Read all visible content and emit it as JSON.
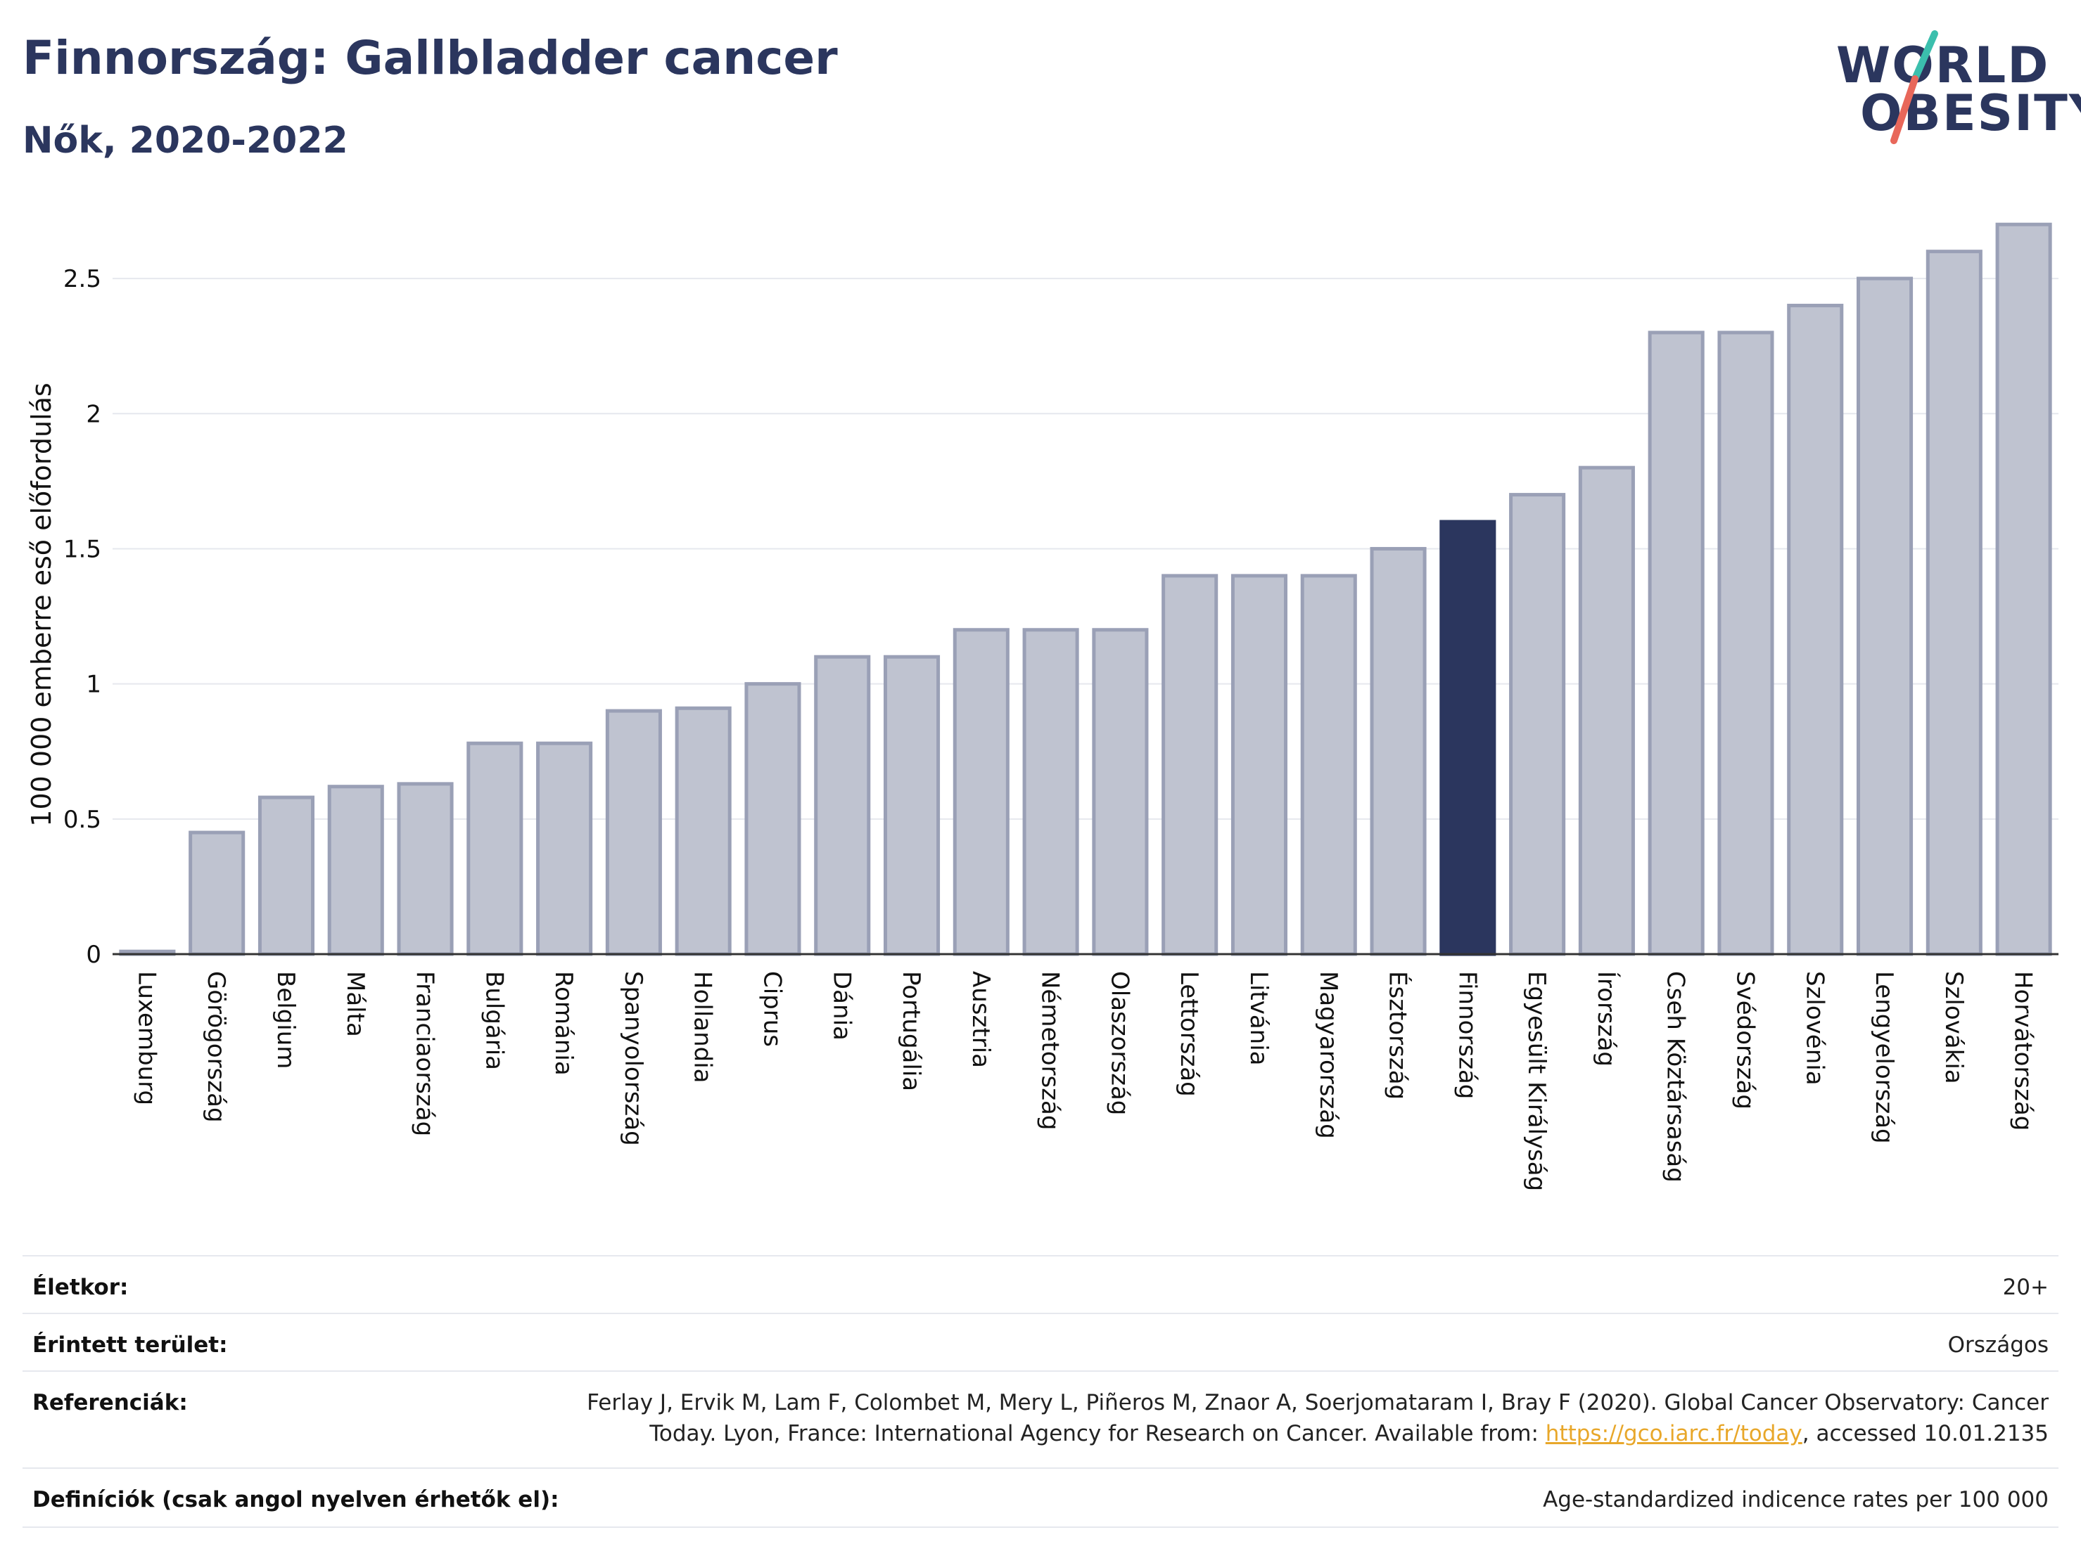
{
  "header": {
    "title": "Finnország: Gallbladder cancer",
    "subtitle": "Nők, 2020-2022"
  },
  "logo": {
    "line1": "WORLD",
    "line2": "OBESITY"
  },
  "chart_data": {
    "type": "bar",
    "ylabel": "100 000 emberre eső előfordulás",
    "ylim": [
      0,
      2.75
    ],
    "yticks": [
      0,
      0.5,
      1,
      1.5,
      2,
      2.5
    ],
    "ytick_labels": [
      "0",
      "0.5",
      "1",
      "1.5",
      "2",
      "2.5"
    ],
    "grid": true,
    "highlight": "Finnország",
    "colors": {
      "bar": "#bfc3d0",
      "bar_edge": "#9aa0b6",
      "highlight": "#2b365e",
      "grid": "#e6e8ee",
      "axis": "#333333"
    },
    "categories": [
      "Luxemburg",
      "Görögország",
      "Belgium",
      "Málta",
      "Franciaország",
      "Bulgária",
      "Románia",
      "Spanyolország",
      "Hollandia",
      "Ciprus",
      "Dánia",
      "Portugália",
      "Ausztria",
      "Németország",
      "Olaszország",
      "Lettország",
      "Litvánia",
      "Magyarország",
      "Észtország",
      "Finnország",
      "Egyesült Királyság",
      "Írország",
      "Cseh Köztársaság",
      "Svédország",
      "Szlovénia",
      "Lengyelország",
      "Szlovákia",
      "Horvátország"
    ],
    "values": [
      0.01,
      0.45,
      0.58,
      0.62,
      0.63,
      0.78,
      0.78,
      0.9,
      0.91,
      1.0,
      1.1,
      1.1,
      1.2,
      1.2,
      1.2,
      1.4,
      1.4,
      1.4,
      1.5,
      1.6,
      1.7,
      1.8,
      2.3,
      2.3,
      2.4,
      2.5,
      2.6,
      2.7
    ]
  },
  "info": {
    "age_label": "Életkor:",
    "age_value": "20+",
    "area_label": "Érintett terület:",
    "area_value": "Országos",
    "ref_label": "Referenciák:",
    "ref_line1": "Ferlay J, Ervik M, Lam F, Colombet M, Mery L, Piñeros M, Znaor A, Soerjomataram I, Bray F (2020). Global Cancer Observatory: Cancer",
    "ref_line2_pre": "Today. Lyon, France: International Agency for Research on Cancer. Available from: ",
    "ref_link": "https://gco.iarc.fr/today",
    "ref_line2_post": ", accessed 10.01.2135",
    "def_label": "Definíciók (csak angol nyelven érhetők el):",
    "def_value": "Age-standardized indicence rates per 100 000"
  }
}
